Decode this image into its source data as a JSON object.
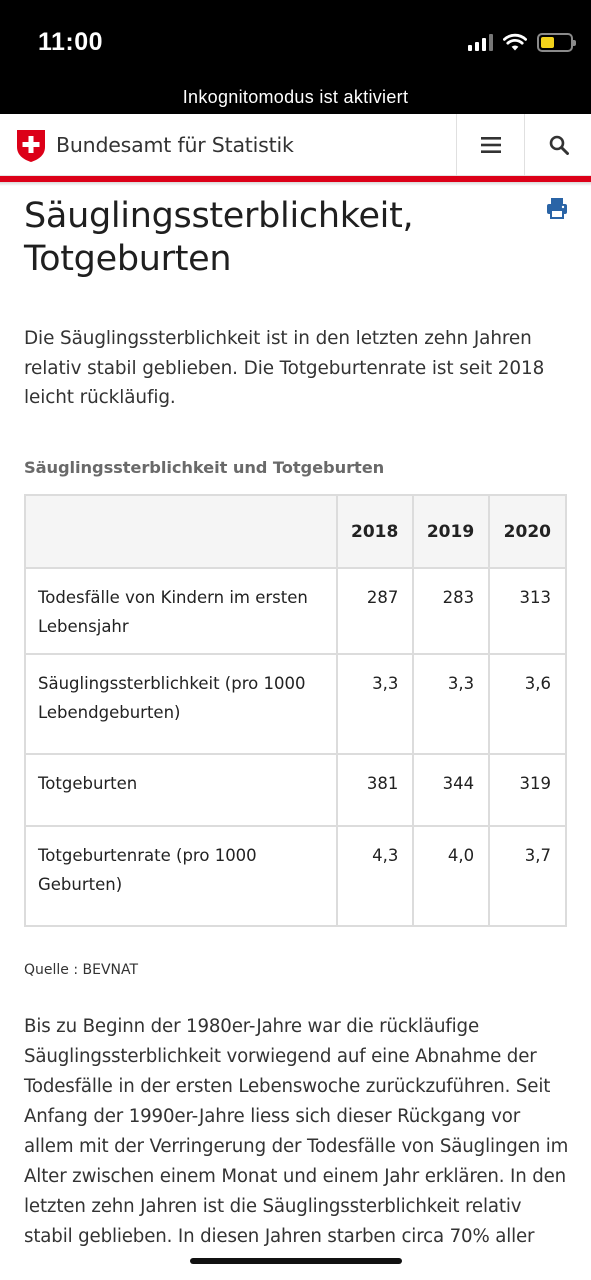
{
  "status_bar": {
    "time": "11:00"
  },
  "browser": {
    "incognito_notice": "Inkognitomodus ist aktiviert"
  },
  "header": {
    "brand": "Bundesamt für Statistik"
  },
  "page": {
    "title_line1": "Säuglingssterblichkeit,",
    "title_line2": "Totgeburten",
    "lead": "Die Säuglingssterblichkeit ist in den letzten zehn Jahren relativ stabil geblieben. Die Totgeburtenrate ist seit 2018 leicht rückläufig."
  },
  "table": {
    "caption": "Säuglingssterblichkeit und Totgeburten",
    "years": [
      "2018",
      "2019",
      "2020"
    ],
    "rows": [
      {
        "label": "Todesfälle von Kindern im ersten Lebensjahr",
        "values": [
          "287",
          "283",
          "313"
        ]
      },
      {
        "label": "Säuglingssterblichkeit (pro 1000 Lebendgeburten)",
        "values": [
          "3,3",
          "3,3",
          "3,6"
        ]
      },
      {
        "label": "Totgeburten",
        "values": [
          "381",
          "344",
          "319"
        ]
      },
      {
        "label": "Totgeburtenrate (pro 1000 Geburten)",
        "values": [
          "4,3",
          "4,0",
          "3,7"
        ]
      }
    ]
  },
  "source": "Quelle : BEVNAT",
  "body": "Bis zu Beginn der 1980er-Jahre war die rückläufige Säuglingssterblichkeit vorwiegend auf eine Abnahme der Todesfälle in der ersten Lebenswoche zurückzuführen. Seit Anfang der 1990er-Jahre liess sich dieser Rückgang vor allem mit der Verringerung der Todesfälle von Säuglingen im Alter zwischen einem Monat und einem Jahr erklären. In den letzten zehn Jahren ist die Säuglingssterblichkeit relativ stabil geblieben. In diesen Jahren starben circa 70% aller",
  "colors": {
    "accent_red": "#dc0018",
    "battery_yellow": "#f2d21b"
  },
  "icons": [
    "signal-icon",
    "wifi-icon",
    "battery-icon",
    "swiss-cross-icon",
    "menu-icon",
    "search-icon",
    "print-icon"
  ]
}
